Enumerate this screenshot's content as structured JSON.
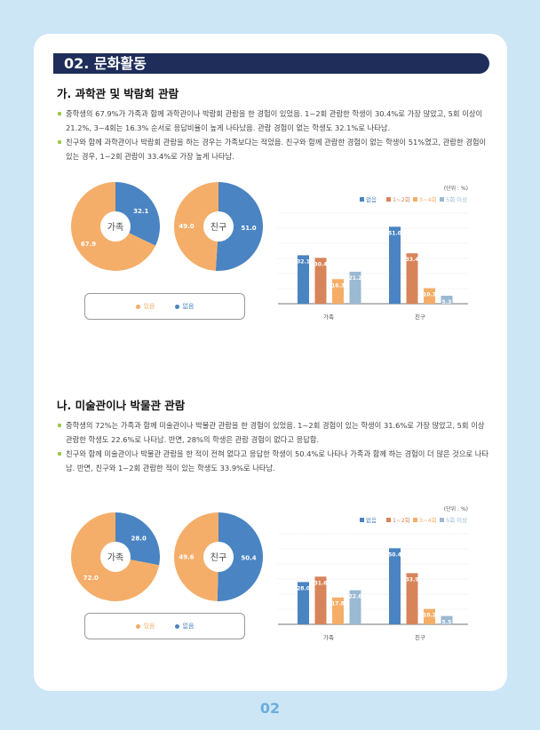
{
  "header": {
    "title": "02. 문화활동"
  },
  "sections": [
    {
      "title": "가. 과학관 및 박람회 관람",
      "bullets": [
        "중학생의 67.9%가 가족과 함께 과학관이나 박람회 관람을 한 경험이 있었음. 1~2회 관람한 학생이 30.4%로 가장 많았고, 5회 이상이 21.2%, 3~4회는 16.3% 순서로 응답비율이 높게 나타났음. 관람 경험이 없는 학생도 32.1%로 나타남.",
        "친구와 함께 과학관이나 박람회 관람을 하는 경우는 가족보다는 적었음. 친구와 함께 관람한 경험이 없는 학생이 51%였고, 관람한 경험이 있는 경우, 1~2회 관람이 33.4%로 가장 높게 나타남."
      ]
    },
    {
      "title": "나. 미술관이나 박물관 관람",
      "bullets": [
        "중학생의 72%는 가족과 함께 미술관이나 박물관 관람을 한 경험이 있었음. 1~2회 경험이 있는 학생이 31.6%로 가장 많았고, 5회 이상 관람한 학생도 22.6%로 나타남. 반면, 28%의 학생은 관람 경험이 없다고 응답함.",
        "친구와 함께 미술관이나 박물관 관람을 한 적이 전혀 없다고 응답한 학생이 50.4%로 나타나 가족과 함께 하는 경험이 더 많은 것으로 나타남. 반면, 친구와 1~2회 관람한 적이 있는 학생도 33.9%로 나타남."
      ]
    }
  ],
  "colors": {
    "yes": "#f4ae69",
    "no": "#4a84c2",
    "c12": "#d8845a",
    "c34": "#f4ae69",
    "c5": "#9bb9d1"
  },
  "chart_data": [
    {
      "type": "pie",
      "groups": [
        {
          "name": "가족",
          "values": {
            "있음": 67.9,
            "없음": 32.1
          },
          "labels": [
            "67.9",
            "32.1"
          ]
        },
        {
          "name": "친구",
          "values": {
            "있음": 49.0,
            "없음": 51.0
          },
          "labels": [
            "49.0",
            "51.0"
          ]
        }
      ],
      "legend": [
        "있음",
        "없음"
      ]
    },
    {
      "type": "bar",
      "unit": "(단위 : %)",
      "categories": [
        "가족",
        "친구"
      ],
      "series": [
        {
          "name": "없음",
          "values": [
            32.1,
            51.0
          ]
        },
        {
          "name": "1~2회",
          "values": [
            30.4,
            33.4
          ]
        },
        {
          "name": "3~4회",
          "values": [
            16.3,
            10.3
          ]
        },
        {
          "name": "5회 이상",
          "values": [
            21.2,
            5.3
          ]
        }
      ],
      "ylim": [
        0,
        60
      ]
    },
    {
      "type": "pie",
      "groups": [
        {
          "name": "가족",
          "values": {
            "있음": 72.0,
            "없음": 28.0
          },
          "labels": [
            "72.0",
            "28.0"
          ]
        },
        {
          "name": "친구",
          "values": {
            "있음": 49.6,
            "없음": 50.4
          },
          "labels": [
            "49.6",
            "50.4"
          ]
        }
      ],
      "legend": [
        "있음",
        "없음"
      ]
    },
    {
      "type": "bar",
      "unit": "(단위 : %)",
      "categories": [
        "가족",
        "친구"
      ],
      "series": [
        {
          "name": "없음",
          "values": [
            28.0,
            50.4
          ]
        },
        {
          "name": "1~2회",
          "values": [
            31.6,
            33.9
          ]
        },
        {
          "name": "3~4회",
          "values": [
            17.8,
            10.2
          ]
        },
        {
          "name": "5회 이상",
          "values": [
            22.6,
            5.5
          ]
        }
      ],
      "ylim": [
        0,
        60
      ]
    }
  ],
  "page_number": "02"
}
